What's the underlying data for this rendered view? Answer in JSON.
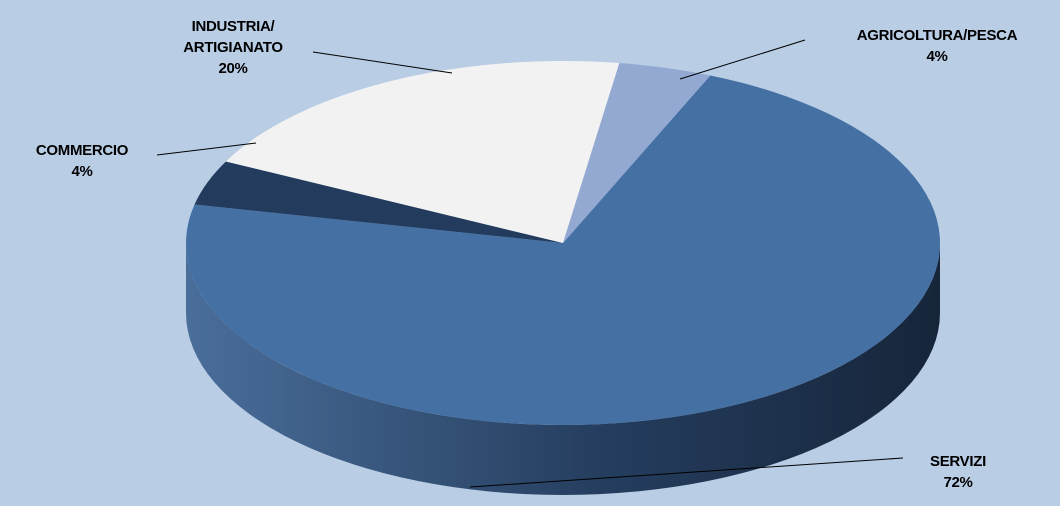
{
  "chart_data": {
    "type": "pie",
    "style": "3d",
    "legend": "none",
    "slices": [
      {
        "name": "SERVIZI",
        "label_lines": [
          "SERVIZI"
        ],
        "value": 72,
        "value_label": "72%",
        "color": "#4470a4"
      },
      {
        "name": "COMMERCIO",
        "label_lines": [
          "COMMERCIO"
        ],
        "value": 4,
        "value_label": "4%",
        "color": "#233c5d"
      },
      {
        "name": "INDUSTRIA/ ARTIGIANATO",
        "label_lines": [
          "INDUSTRIA/",
          "ARTIGIANATO"
        ],
        "value": 20,
        "value_label": "20%",
        "color": "#f2f2f2"
      },
      {
        "name": "AGRICOLTURA/PESCA",
        "label_lines": [
          "AGRICOLTURA/PESCA"
        ],
        "value": 4,
        "value_label": "4%",
        "color": "#93a9d1"
      }
    ]
  },
  "colors": {
    "background": "#b9cde5",
    "side_dark": "#16253a",
    "side_light": "#4a6e9a",
    "leader_line": "#000000"
  }
}
